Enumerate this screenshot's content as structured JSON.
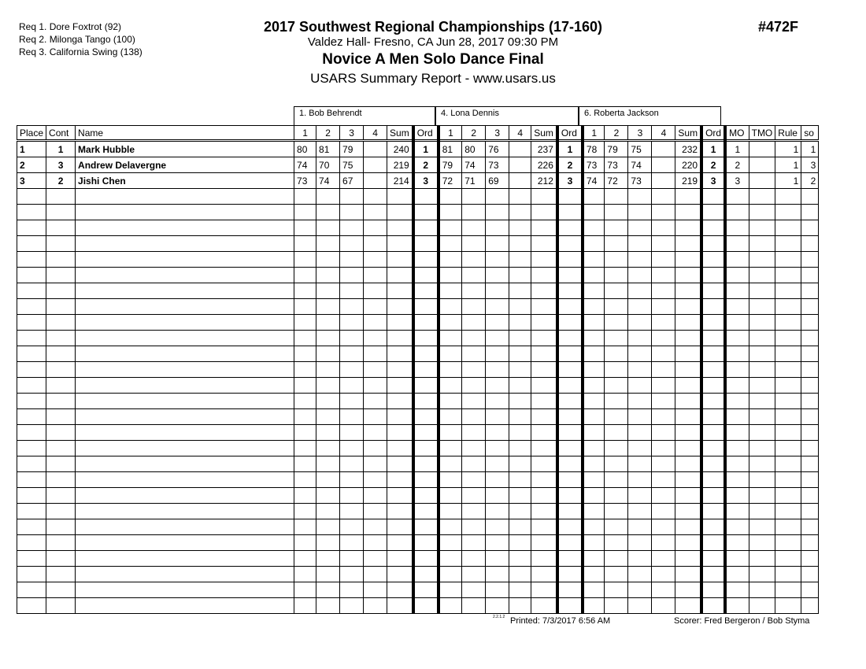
{
  "requirements": [
    "Req  1.  Dore Foxtrot (92)",
    "Req  2.  Milonga Tango (100)",
    "Req  3.  California Swing (138)"
  ],
  "title": "2017 Southwest Regional Championships (17-160)",
  "venue": "Valdez Hall- Fresno, CA  Jun 28, 2017  09:30 PM",
  "event": "Novice A Men Solo Dance Final",
  "report": "USARS Summary Report - www.usars.us",
  "event_number": "#472F",
  "judges": [
    "1.  Bob Behrendt",
    "4.  Lona Dennis",
    "6.  Roberta Jackson"
  ],
  "columns": {
    "place": "Place",
    "cont": "Cont",
    "name": "Name",
    "judge_cols": [
      "1",
      "2",
      "3",
      "4",
      "Sum",
      "Ord"
    ],
    "mo": "MO",
    "tmo": "TMO",
    "rule": "Rule",
    "so": "so"
  },
  "rows": [
    {
      "place": "1",
      "cont": "1",
      "name": "Mark Hubble",
      "judges": [
        [
          "80",
          "81",
          "79",
          "",
          "240",
          "1"
        ],
        [
          "81",
          "80",
          "76",
          "",
          "237",
          "1"
        ],
        [
          "78",
          "79",
          "75",
          "",
          "232",
          "1"
        ]
      ],
      "mo": "1",
      "tmo": "",
      "rule": "1",
      "so": "1"
    },
    {
      "place": "2",
      "cont": "3",
      "name": "Andrew Delavergne",
      "judges": [
        [
          "74",
          "70",
          "75",
          "",
          "219",
          "2"
        ],
        [
          "79",
          "74",
          "73",
          "",
          "226",
          "2"
        ],
        [
          "73",
          "73",
          "74",
          "",
          "220",
          "2"
        ]
      ],
      "mo": "2",
      "tmo": "",
      "rule": "1",
      "so": "3"
    },
    {
      "place": "3",
      "cont": "2",
      "name": "Jishi Chen",
      "judges": [
        [
          "73",
          "74",
          "67",
          "",
          "214",
          "3"
        ],
        [
          "72",
          "71",
          "69",
          "",
          "212",
          "3"
        ],
        [
          "74",
          "72",
          "73",
          "",
          "219",
          "3"
        ]
      ],
      "mo": "3",
      "tmo": "",
      "rule": "1",
      "so": "2"
    }
  ],
  "footer": {
    "version": "2.2.1.2",
    "printed": "Printed:  7/3/2017  6:56 AM",
    "scorer": "Scorer:   Fred Bergeron / Bob Styma"
  }
}
